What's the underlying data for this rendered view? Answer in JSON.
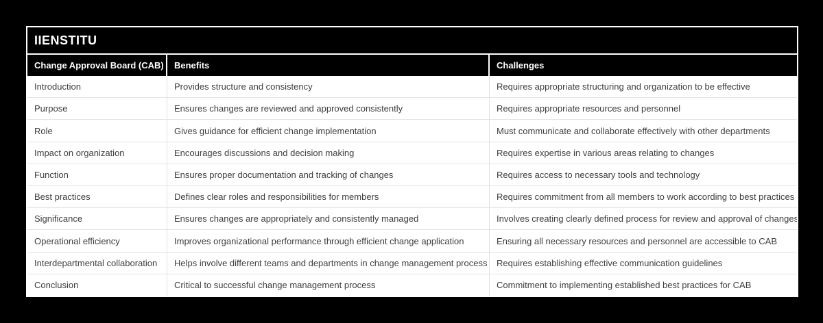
{
  "table": {
    "title": "IIENSTITU",
    "columns": [
      "Change Approval Board (CAB)",
      "Benefits",
      "Challenges"
    ],
    "rows": [
      [
        "Introduction",
        "Provides structure and consistency",
        "Requires appropriate structuring and organization to be effective"
      ],
      [
        "Purpose",
        "Ensures changes are reviewed and approved consistently",
        "Requires appropriate resources and personnel"
      ],
      [
        "Role",
        "Gives guidance for efficient change implementation",
        "Must communicate and collaborate effectively with other departments"
      ],
      [
        "Impact on organization",
        "Encourages discussions and decision making",
        "Requires expertise in various areas relating to changes"
      ],
      [
        "Function",
        "Ensures proper documentation and tracking of changes",
        "Requires access to necessary tools and technology"
      ],
      [
        "Best practices",
        "Defines clear roles and responsibilities for members",
        "Requires commitment from all members to work according to best practices"
      ],
      [
        "Significance",
        "Ensures changes are appropriately and consistently managed",
        "Involves creating clearly defined process for review and approval of changes"
      ],
      [
        "Operational efficiency",
        "Improves organizational performance through efficient change application",
        "Ensuring all necessary resources and personnel are accessible to CAB"
      ],
      [
        "Interdepartmental collaboration",
        "Helps involve different teams and departments in change management process",
        "Requires establishing effective communication guidelines"
      ],
      [
        "Conclusion",
        "Critical to successful change management process",
        "Commitment to implementing established best practices for CAB"
      ]
    ]
  },
  "colors": {
    "page_background": "#000000",
    "title_bar_background": "#000000",
    "title_text": "#ffffff",
    "header_background": "#000000",
    "header_text": "#ffffff",
    "body_background": "#ffffff",
    "body_text": "#3d3d3d",
    "divider": "#e3e3e3"
  }
}
